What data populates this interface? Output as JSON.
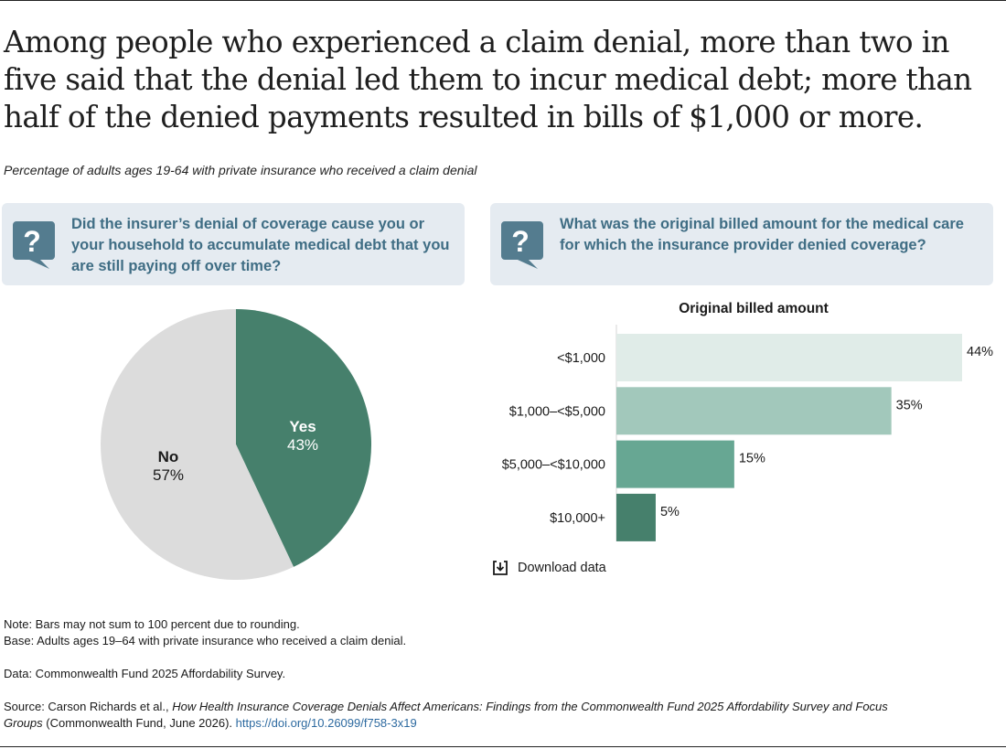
{
  "title": "Among people who experienced a claim denial, more than two in five said that the denial led them to incur medical debt; more than half of the denied payments resulted in bills of $1,000 or more.",
  "subtitle": "Percentage of adults ages 19-64 with private insurance who received a claim denial",
  "left_question": "Did the insurer’s denial of coverage cause you or your household to accumulate medical debt that you are still paying off over time?",
  "right_question": "What was the original billed amount for the medical care for which the insurance provider denied coverage?",
  "download_label": "Download data",
  "notes": {
    "note": "Note: Bars may not sum to 100 percent due to rounding.",
    "base": "Base: Adults ages 19–64 with private insurance who received a claim denial.",
    "data": "Data: Commonwealth Fund 2025 Affordability Survey.",
    "source_prefix": "Source: Carson Richards et al., ",
    "source_title": "How Health Insurance Coverage Denials Affect Americans: Findings from the Commonwealth Fund 2025 Affordability Survey and Focus Groups",
    "source_suffix": " (Commonwealth Fund, June 2026). ",
    "source_link": "https://doi.org/10.26099/f758-3x19"
  },
  "colors": {
    "question_bg": "#e5ebf1",
    "question_text": "#3f6d84",
    "icon": "#547c8f",
    "pie_yes": "#46806c",
    "pie_no": "#dcdcdc"
  },
  "chart_data": [
    {
      "type": "pie",
      "slices": [
        {
          "label": "Yes",
          "value": 43,
          "display": "43%",
          "color": "#46806c"
        },
        {
          "label": "No",
          "value": 57,
          "display": "57%",
          "color": "#dcdcdc"
        }
      ]
    },
    {
      "type": "bar",
      "orientation": "horizontal",
      "title": "Original billed amount",
      "categories": [
        "<$1,000",
        "$1,000–<$5,000",
        "$5,000–<$10,000",
        "$10,000+"
      ],
      "values": [
        44,
        35,
        15,
        5
      ],
      "value_labels": [
        "44%",
        "35%",
        "15%",
        "5%"
      ],
      "colors": [
        "#e0ece8",
        "#a2c8bb",
        "#67a793",
        "#46806c"
      ],
      "xlim": [
        0,
        44
      ]
    }
  ]
}
